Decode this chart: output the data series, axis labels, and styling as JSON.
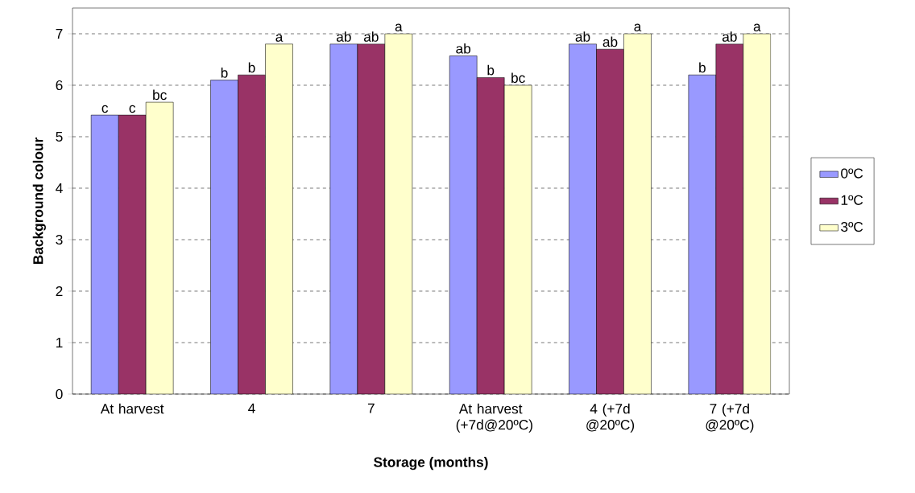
{
  "chart_data": {
    "type": "bar",
    "xlabel": "Storage (months)",
    "ylabel": "Background colour",
    "categories": [
      "At harvest",
      "4",
      "7",
      "At harvest (+7d@20ºC)",
      "4 (+7d @20ºC)",
      "7 (+7d @20ºC)"
    ],
    "series": [
      {
        "name": "0ºC",
        "color": "#9999ff",
        "values": [
          5.42,
          6.1,
          6.8,
          6.57,
          6.8,
          6.2
        ],
        "value_labels": [
          "c",
          "b",
          "ab",
          "ab",
          "ab",
          "b"
        ]
      },
      {
        "name": "1ºC",
        "color": "#993366",
        "values": [
          5.42,
          6.2,
          6.8,
          6.15,
          6.7,
          6.8
        ],
        "value_labels": [
          "c",
          "b",
          "ab",
          "b",
          "ab",
          "ab"
        ]
      },
      {
        "name": "3ºC",
        "color": "#ffffcc",
        "values": [
          5.67,
          6.8,
          7.0,
          6.0,
          7.0,
          7.0
        ],
        "value_labels": [
          "bc",
          "a",
          "a",
          "bc",
          "a",
          "a"
        ]
      }
    ],
    "ylim": [
      0,
      7.5
    ],
    "yticks": [
      0,
      1,
      2,
      3,
      4,
      5,
      6,
      7
    ],
    "grid": "y",
    "legend": "right"
  }
}
